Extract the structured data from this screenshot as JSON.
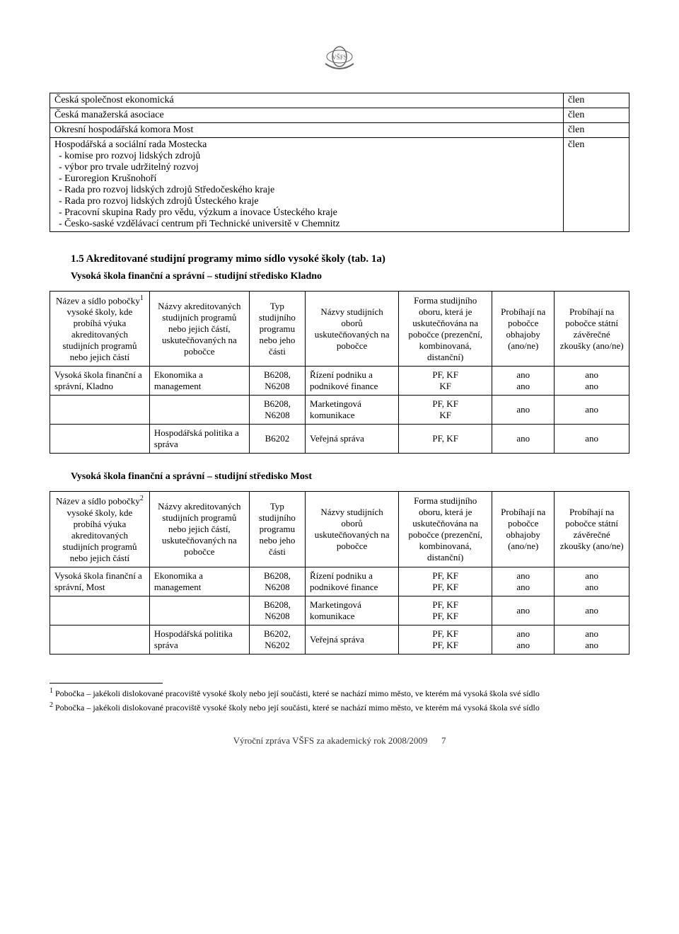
{
  "logo_text": "VŠFS",
  "member_table": {
    "rows": [
      {
        "label": "Česká společnost ekonomická",
        "status": "člen"
      },
      {
        "label": "Česká manažerská asociace",
        "status": "člen"
      },
      {
        "label": "Okresní hospodářská komora Most",
        "status": "člen"
      },
      {
        "label": "Hospodářská a sociální rada Mostecka",
        "status": "člen",
        "subs": [
          "komise pro rozvoj lidských zdrojů",
          "výbor pro trvale udržitelný rozvoj",
          "Euroregion Krušnohoří",
          "Rada pro rozvoj lidských zdrojů Středočeského kraje",
          "Rada pro rozvoj lidských zdrojů Ústeckého kraje",
          "Pracovní skupina Rady pro vědu, výzkum a inovace Ústeckého kraje",
          "Česko-saské vzdělávací centrum při Technické universitě v Chemnitz"
        ]
      }
    ]
  },
  "section15": {
    "heading": "1.5 Akreditované studijní programy mimo sídlo vysoké školy (tab. 1a)",
    "sub_kladno": "Vysoká škola finanční a správní – studijní středisko Kladno",
    "sub_most": "Vysoká škola finanční a správní – studijní středisko Most"
  },
  "table_headers": {
    "h1_a": "Název a sídlo pobočky",
    "h1_b": " vysoké školy, kde probíhá výuka akreditovaných studijních programů nebo jejich částí",
    "h2": "Názvy akreditovaných studijních programů nebo jejich částí, uskutečňovaných na pobočce",
    "h3": "Typ studijního programu nebo jeho části",
    "h4": "Názvy studijních oborů uskutečňovaných na pobočce",
    "h5": "Forma studijního oboru, která je uskutečňována na pobočce (prezenční, kombinovaná, distanční)",
    "h6": "Probíhají na pobočce obhajoby (ano/ne)",
    "h7": "Probíhají na pobočce státní závěrečné zkoušky (ano/ne)"
  },
  "kladno_rows": [
    {
      "c1": "Vysoká škola finanční a správní, Kladno",
      "c2": "Ekonomika a management",
      "c3": "B6208, N6208",
      "c4": "Řízení podniku a podnikové finance",
      "c5": "PF, KF\nKF",
      "c6": "ano\nano",
      "c7": "ano\nano"
    },
    {
      "c1": "",
      "c2": "",
      "c3": "B6208, N6208",
      "c4": "Marketingová komunikace",
      "c5": "PF, KF\nKF",
      "c6": "ano",
      "c7": "ano"
    },
    {
      "c1": "",
      "c2": "Hospodářská politika a správa",
      "c3": "B6202",
      "c4": "Veřejná správa",
      "c5": "PF, KF",
      "c6": "ano",
      "c7": "ano"
    }
  ],
  "most_rows": [
    {
      "c1": "Vysoká škola finanční a správní, Most",
      "c2": "Ekonomika a management",
      "c3": "B6208, N6208",
      "c4": "Řízení podniku a podnikové finance",
      "c5": "PF, KF\nPF, KF",
      "c6": "ano\nano",
      "c7": "ano\nano"
    },
    {
      "c1": "",
      "c2": "",
      "c3": "B6208, N6208",
      "c4": "Marketingová komunikace",
      "c5": "PF, KF\nPF, KF",
      "c6": "ano",
      "c7": "ano"
    },
    {
      "c1": "",
      "c2": "Hospodářská politika správa",
      "c3": "B6202, N6202",
      "c4": "Veřejná správa",
      "c5": "PF, KF\nPF, KF",
      "c6": "ano\nano",
      "c7": "ano\nano"
    }
  ],
  "footnote_sup1": "1",
  "footnote_sup2": "2",
  "footnotes": {
    "f1": " Pobočka – jakékoli dislokované pracoviště vysoké školy nebo její součásti, které se nachází mimo město, ve kterém má vysoká škola své sídlo",
    "f2": " Pobočka – jakékoli dislokované pracoviště vysoké školy nebo její součásti, které se nachází mimo město, ve kterém má vysoká škola své sídlo"
  },
  "footer": {
    "text": "Výroční zpráva VŠFS za akademický rok 2008/2009",
    "page": "7"
  }
}
